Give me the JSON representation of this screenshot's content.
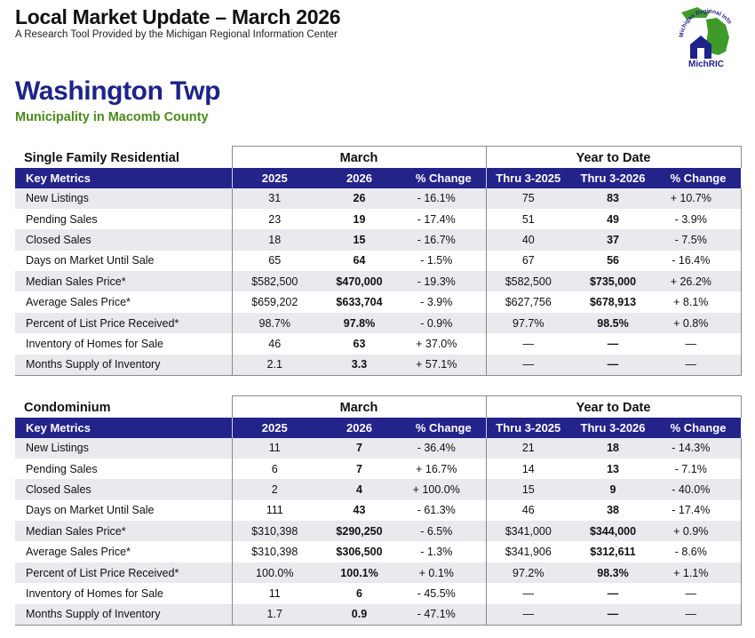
{
  "header": {
    "title": "Local Market Update – March 2026",
    "subtitle": "A Research Tool Provided by the Michigan Regional Information Center"
  },
  "logo": {
    "arc_text": "Michigan Regional Information Center",
    "brand": "MichRIC",
    "brand_color": "#1d2388",
    "map_color": "#3f9a2a"
  },
  "municipality": {
    "name": "Washington Twp",
    "subtitle": "Municipality in Macomb County"
  },
  "colors": {
    "header_bar": "#23238a",
    "title_blue": "#1d2388",
    "subtitle_green": "#4c8a1a",
    "stripe": "#e9e9ee"
  },
  "single_family": {
    "section_title": "Single Family Residential",
    "group_month": "March",
    "group_ytd": "Year to Date",
    "columns": [
      "Key Metrics",
      "2025",
      "2026",
      "% Change",
      "Thru 3-2025",
      "Thru 3-2026",
      "% Change"
    ],
    "rows": [
      [
        "New Listings",
        "31",
        "26",
        "- 16.1%",
        "75",
        "83",
        "+ 10.7%"
      ],
      [
        "Pending Sales",
        "23",
        "19",
        "- 17.4%",
        "51",
        "49",
        "- 3.9%"
      ],
      [
        "Closed Sales",
        "18",
        "15",
        "- 16.7%",
        "40",
        "37",
        "- 7.5%"
      ],
      [
        "Days on Market Until Sale",
        "65",
        "64",
        "- 1.5%",
        "67",
        "56",
        "- 16.4%"
      ],
      [
        "Median Sales Price*",
        "$582,500",
        "$470,000",
        "- 19.3%",
        "$582,500",
        "$735,000",
        "+ 26.2%"
      ],
      [
        "Average Sales Price*",
        "$659,202",
        "$633,704",
        "- 3.9%",
        "$627,756",
        "$678,913",
        "+ 8.1%"
      ],
      [
        "Percent of List Price Received*",
        "98.7%",
        "97.8%",
        "- 0.9%",
        "97.7%",
        "98.5%",
        "+ 0.8%"
      ],
      [
        "Inventory of Homes for Sale",
        "46",
        "63",
        "+ 37.0%",
        "—",
        "—",
        "—"
      ],
      [
        "Months Supply of Inventory",
        "2.1",
        "3.3",
        "+ 57.1%",
        "—",
        "—",
        "—"
      ]
    ]
  },
  "condo": {
    "section_title": "Condominium",
    "group_month": "March",
    "group_ytd": "Year to Date",
    "columns": [
      "Key Metrics",
      "2025",
      "2026",
      "% Change",
      "Thru 3-2025",
      "Thru 3-2026",
      "% Change"
    ],
    "rows": [
      [
        "New Listings",
        "11",
        "7",
        "- 36.4%",
        "21",
        "18",
        "- 14.3%"
      ],
      [
        "Pending Sales",
        "6",
        "7",
        "+ 16.7%",
        "14",
        "13",
        "- 7.1%"
      ],
      [
        "Closed Sales",
        "2",
        "4",
        "+ 100.0%",
        "15",
        "9",
        "- 40.0%"
      ],
      [
        "Days on Market Until Sale",
        "111",
        "43",
        "- 61.3%",
        "46",
        "38",
        "- 17.4%"
      ],
      [
        "Median Sales Price*",
        "$310,398",
        "$290,250",
        "- 6.5%",
        "$341,000",
        "$344,000",
        "+ 0.9%"
      ],
      [
        "Average Sales Price*",
        "$310,398",
        "$306,500",
        "- 1.3%",
        "$341,906",
        "$312,611",
        "- 8.6%"
      ],
      [
        "Percent of List Price Received*",
        "100.0%",
        "100.1%",
        "+ 0.1%",
        "97.2%",
        "98.3%",
        "+ 1.1%"
      ],
      [
        "Inventory of Homes for Sale",
        "11",
        "6",
        "- 45.5%",
        "—",
        "—",
        "—"
      ],
      [
        "Months Supply of Inventory",
        "1.7",
        "0.9",
        "- 47.1%",
        "—",
        "—",
        "—"
      ]
    ]
  }
}
